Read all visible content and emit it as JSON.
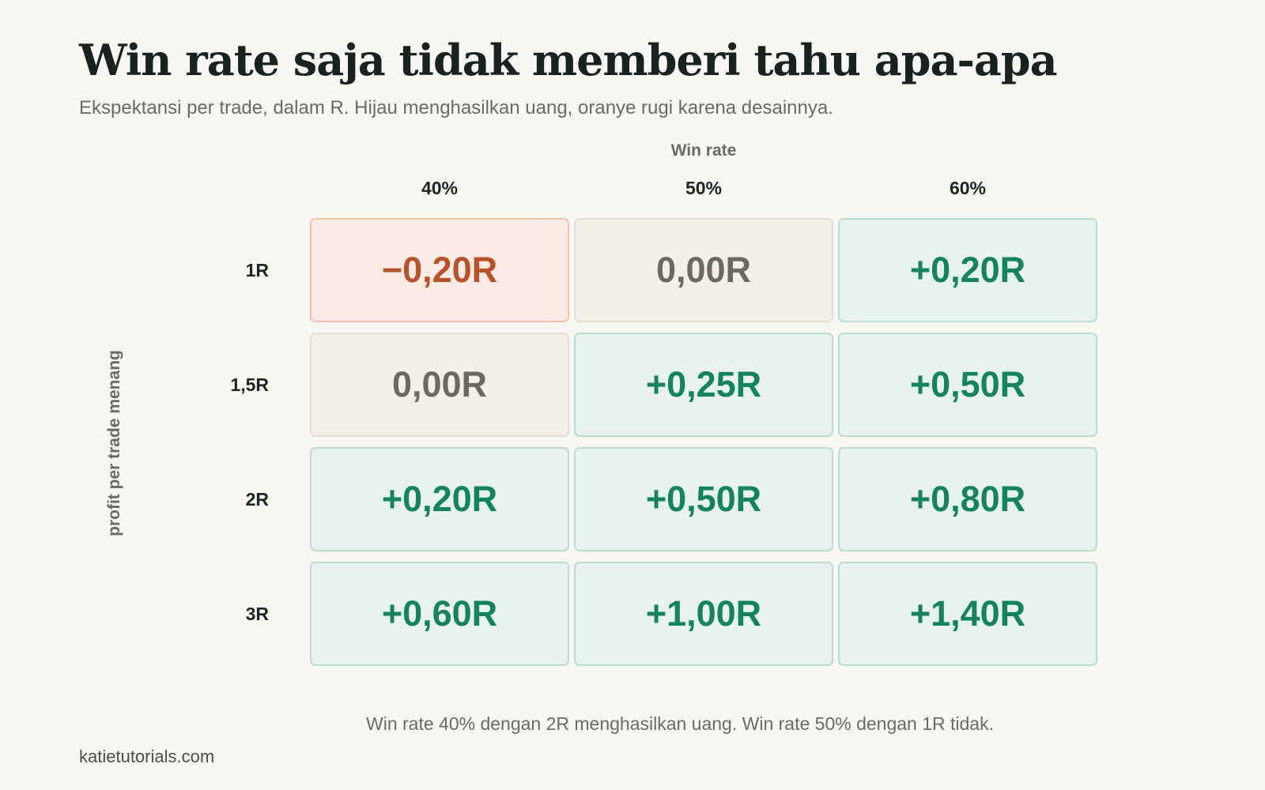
{
  "title": "Win rate saja tidak memberi tahu apa-apa",
  "subtitle": "Ekspektansi per trade, dalam R. Hijau menghasilkan uang, oranye rugi karena desainnya.",
  "footnote": "Win rate 40% dengan 2R menghasilkan uang. Win rate 50% dengan 1R tidak.",
  "source": "katietutorials.com",
  "colors": {
    "positive": "#14835f",
    "negative": "#b9522a",
    "neutral": "#6b6a60"
  },
  "chart_data": {
    "type": "heatmap",
    "xlabel": "Win rate",
    "ylabel": "profit per trade menang",
    "x_categories": [
      "40%",
      "50%",
      "60%"
    ],
    "y_categories": [
      "1R",
      "1,5R",
      "2R",
      "3R"
    ],
    "values": [
      [
        -0.2,
        0.0,
        0.2
      ],
      [
        0.0,
        0.25,
        0.5
      ],
      [
        0.2,
        0.5,
        0.8
      ],
      [
        0.6,
        1.0,
        1.4
      ]
    ],
    "labels": [
      [
        "−0,20R",
        "0,00R",
        "+0,20R"
      ],
      [
        "0,00R",
        "+0,25R",
        "+0,50R"
      ],
      [
        "+0,20R",
        "+0,50R",
        "+0,80R"
      ],
      [
        "+0,60R",
        "+1,00R",
        "+1,40R"
      ]
    ]
  }
}
